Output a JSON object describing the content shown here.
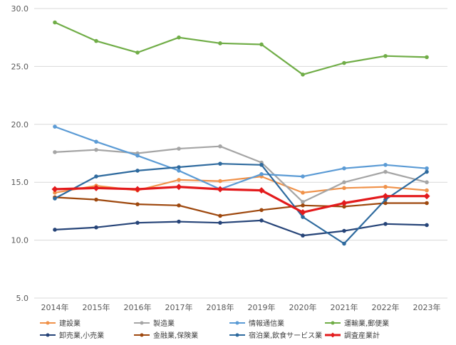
{
  "chart_data": {
    "type": "line",
    "x": [
      "2014年",
      "2015年",
      "2016年",
      "2017年",
      "2018年",
      "2019年",
      "2020年",
      "2021年",
      "2022年",
      "2023年"
    ],
    "ylim": [
      5.0,
      30.0
    ],
    "yticks": [
      "5.0",
      "10.0",
      "15.0",
      "20.0",
      "25.0",
      "30.0"
    ],
    "grid": true,
    "legend_position": "bottom",
    "series": [
      {
        "name": "建設業",
        "color": "#f0924a",
        "values": [
          14.1,
          14.7,
          14.3,
          15.2,
          15.1,
          15.5,
          14.1,
          14.5,
          14.6,
          14.3
        ]
      },
      {
        "name": "製造業",
        "color": "#a5a5a5",
        "values": [
          17.6,
          17.8,
          17.5,
          17.9,
          18.1,
          16.7,
          13.3,
          15.0,
          15.9,
          15.0
        ]
      },
      {
        "name": "情報通信業",
        "color": "#5b9bd5",
        "values": [
          19.8,
          18.5,
          17.3,
          16.0,
          14.4,
          15.7,
          15.5,
          16.2,
          16.5,
          16.2
        ]
      },
      {
        "name": "運輸業,郵便業",
        "color": "#70ad47",
        "values": [
          28.8,
          27.2,
          26.2,
          27.5,
          27.0,
          26.9,
          24.3,
          25.3,
          25.9,
          25.8
        ]
      },
      {
        "name": "卸売業,小売業",
        "color": "#264478",
        "values": [
          10.9,
          11.1,
          11.5,
          11.6,
          11.5,
          11.7,
          10.4,
          10.8,
          11.4,
          11.3
        ]
      },
      {
        "name": "金融業,保険業",
        "color": "#9e480e",
        "values": [
          13.7,
          13.5,
          13.1,
          13.0,
          12.1,
          12.6,
          13.0,
          12.9,
          13.2,
          13.2
        ]
      },
      {
        "name": "宿泊業,飲食サービス業",
        "color": "#2e6a9e",
        "values": [
          13.6,
          15.5,
          16.0,
          16.3,
          16.6,
          16.5,
          12.0,
          9.7,
          13.5,
          15.9
        ]
      },
      {
        "name": "調査産業計",
        "color": "#e31a1c",
        "values": [
          14.4,
          14.5,
          14.4,
          14.6,
          14.4,
          14.3,
          12.4,
          13.2,
          13.8,
          13.8
        ],
        "bold": true
      }
    ]
  }
}
